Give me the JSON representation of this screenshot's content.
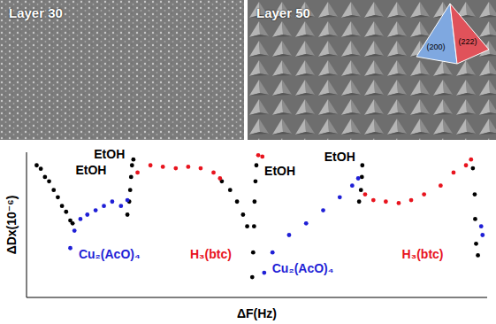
{
  "images": [
    {
      "label": "Layer 30"
    },
    {
      "label": "Layer 50",
      "inset_labels": [
        "(200)",
        "(222)"
      ]
    }
  ],
  "chart_data": {
    "type": "scatter",
    "x_label": "ΔF(Hz)",
    "y_label": "ΔDx(10⁻⁶)",
    "xlim": [
      0,
      100
    ],
    "ylim": [
      0,
      100
    ],
    "xticks": [],
    "yticks": [],
    "tick_labels": false,
    "grid": false,
    "marker": "circle",
    "series": [
      {
        "name": "EtOH",
        "color": "#000000",
        "x": [
          2.2,
          3.1,
          4,
          4.9,
          5.9,
          6.8,
          7.7,
          8.6,
          9.5,
          10,
          21.9,
          22.3,
          22.5,
          22.7,
          22.9,
          23.2,
          42.4,
          44.2,
          45.7,
          47,
          47.9,
          49,
          49.2,
          49.4,
          49.5,
          49.7,
          49.9,
          72.2,
          72.6,
          72.8,
          72.9,
          96.9,
          97.3,
          97.4,
          97.6,
          98
        ],
        "values": [
          91,
          88.6,
          83,
          80,
          74,
          69,
          63,
          59,
          53,
          51,
          57,
          66,
          74,
          83,
          91,
          95,
          80,
          74,
          66,
          57,
          49,
          14,
          31,
          49,
          66,
          80,
          91,
          66,
          74,
          83,
          91,
          89,
          71,
          54,
          37,
          29
        ],
        "label_positions": [
          [
            14,
            88
          ],
          [
            18,
            99
          ],
          [
            55,
            87
          ],
          [
            68,
            97
          ]
        ]
      },
      {
        "name": "Cu₂(AcO)₄",
        "color": "#1f1fd6",
        "x": [
          9.5,
          10.4,
          11.7,
          13.2,
          15,
          16.8,
          18.6,
          20.5,
          21.9,
          51.6,
          53.4,
          57,
          60.7,
          64.4,
          68,
          70.7,
          72,
          98.7,
          99
        ],
        "values": [
          34,
          46,
          54,
          57,
          60,
          63,
          66,
          63,
          67,
          17,
          31,
          43,
          51,
          60,
          69,
          77,
          82,
          49,
          43
        ],
        "label_positions": [
          [
            18,
            30
          ],
          [
            60,
            20
          ]
        ]
      },
      {
        "name": "H₃(btc)",
        "color": "#e8141e",
        "x": [
          24.1,
          26.9,
          29.6,
          32.4,
          35.1,
          37.8,
          40.6,
          42,
          50.3,
          51.2,
          73.5,
          75.3,
          78,
          80.8,
          83.5,
          86.3,
          89.9,
          92.7,
          95.4,
          96.5
        ],
        "values": [
          86,
          91,
          90,
          89,
          90,
          89,
          86,
          82,
          98,
          97,
          71,
          67,
          66,
          65,
          67,
          71,
          77,
          86,
          91,
          95
        ],
        "label_positions": [
          [
            40,
            30
          ],
          [
            86,
            30
          ]
        ]
      }
    ]
  }
}
